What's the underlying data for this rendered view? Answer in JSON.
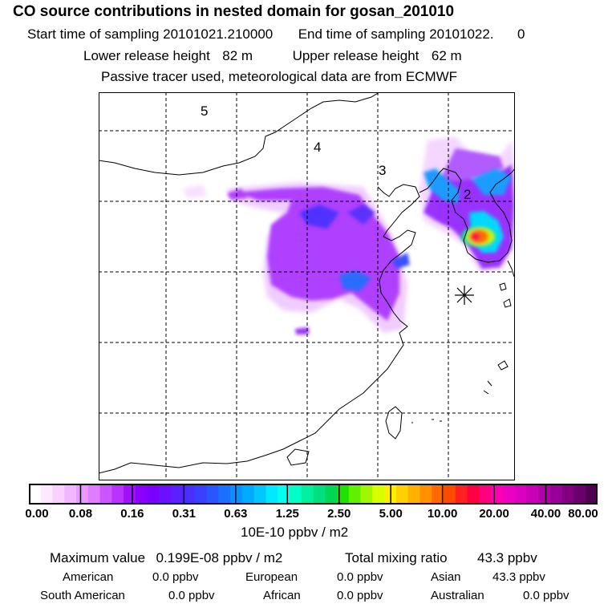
{
  "header": {
    "title": "CO  source contributions in nested domain for gosan_201010",
    "start_label": "Start time of sampling",
    "start_value": "20101021.210000",
    "end_label": "End time of sampling",
    "end_value": "20101022.",
    "end_value2": "0",
    "lower_label": "Lower release height",
    "lower_value": "82 m",
    "upper_label": "Upper release height",
    "upper_value": "62 m",
    "note": "Passive tracer used, meteorological data are from ECMWF"
  },
  "map": {
    "region_labels": [
      "5",
      "4",
      "3",
      "2"
    ],
    "receptor": "gosan"
  },
  "colorbar": {
    "ticks": [
      "0.00",
      "0.08",
      "0.16",
      "0.31",
      "0.63",
      "1.25",
      "2.50",
      "5.00",
      "10.00",
      "20.00",
      "40.00",
      "80.00"
    ],
    "colors": [
      "#ffffff",
      "#fde8ff",
      "#f9d1ff",
      "#f2b5ff",
      "#ea99ff",
      "#e07cff",
      "#cc55ff",
      "#b833ff",
      "#a011ff",
      "#8a00ff",
      "#7a00ff",
      "#6a10ff",
      "#5a20ff",
      "#4a30ff",
      "#3a40ff",
      "#2a55ff",
      "#1a70ff",
      "#0a90ff",
      "#00aaff",
      "#00c8ff",
      "#00e8ff",
      "#00ffee",
      "#00ffc8",
      "#00f0a0",
      "#00e080",
      "#00d855",
      "#20e000",
      "#60f000",
      "#a0f800",
      "#d8ff00",
      "#ffee00",
      "#ffd000",
      "#ffb000",
      "#ff9000",
      "#ff6a00",
      "#ff4a00",
      "#ff2020",
      "#ff0040",
      "#ff0080",
      "#ff00b0",
      "#ee00c0",
      "#dd00c0",
      "#c800b8",
      "#b000a8",
      "#980098",
      "#800080",
      "#6a006a",
      "#500050"
    ],
    "unit": "10E-10 ppbv / m2"
  },
  "summary": {
    "max_label": "Maximum value",
    "max_value": "0.199E-08 ppbv / m2",
    "total_label": "Total mixing ratio",
    "total_value": "43.3 ppbv",
    "regions": [
      {
        "name": "American",
        "value": "0.0 ppbv"
      },
      {
        "name": "European",
        "value": "0.0 ppbv"
      },
      {
        "name": "Asian",
        "value": "43.3 ppbv"
      },
      {
        "name": "South American",
        "value": "0.0 ppbv"
      },
      {
        "name": "African",
        "value": "0.0 ppbv"
      },
      {
        "name": "Australian",
        "value": "0.0 ppbv"
      }
    ]
  }
}
